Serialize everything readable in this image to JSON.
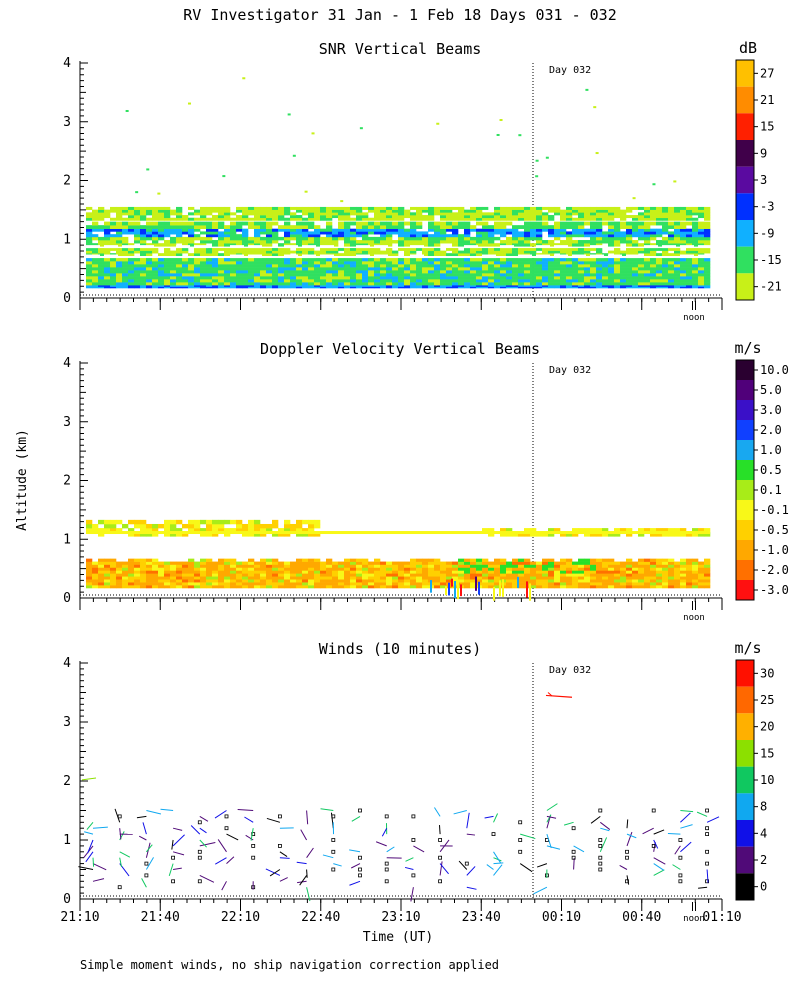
{
  "figure_title": "RV Investigator  31 Jan -  1 Feb 18 Days 031 - 032",
  "ylabel": "Altitude (km)",
  "xlabel": "Time (UT)",
  "footnote": "Simple moment winds, no ship navigation correction applied",
  "day_marker": "Day 032",
  "noon_label": "noon",
  "x_ticks": [
    "21:10",
    "21:40",
    "22:10",
    "22:40",
    "23:10",
    "23:40",
    "00:10",
    "00:40",
    "01:10"
  ],
  "y_ticks": [
    "0",
    "1",
    "2",
    "3",
    "4"
  ],
  "chart_data": [
    {
      "type": "heatmap",
      "title": "SNR Vertical Beams",
      "units": "dB",
      "ylim": [
        0,
        4
      ],
      "xlim": [
        "21:10",
        "01:10"
      ],
      "colorbar": {
        "labels": [
          "27",
          "21",
          "15",
          "9",
          "3",
          "-3",
          "-9",
          "-15",
          "-21"
        ],
        "colors": [
          "#ffc000",
          "#ff8c00",
          "#ff2000",
          "#40004a",
          "#5a0aa0",
          "#0030ff",
          "#10b0ff",
          "#30e060",
          "#c8f018"
        ]
      },
      "layers": [
        {
          "range_km": [
            0.15,
            0.7
          ],
          "snr_db": -12
        },
        {
          "range_km": [
            0.85,
            1.05
          ],
          "snr_db": -15
        },
        {
          "range_km": [
            1.05,
            1.2
          ],
          "snr_db": -6
        },
        {
          "range_km": [
            1.2,
            1.55
          ],
          "snr_db": -18
        }
      ]
    },
    {
      "type": "heatmap",
      "title": "Doppler Velocity Vertical Beams",
      "units": "m/s",
      "ylim": [
        0,
        4
      ],
      "xlim": [
        "21:10",
        "01:10"
      ],
      "colorbar": {
        "labels": [
          "10.0",
          "5.0",
          "3.0",
          "2.0",
          "1.0",
          "0.5",
          "0.1",
          "-0.1",
          "-0.5",
          "-1.0",
          "-2.0",
          "-3.0"
        ],
        "colors": [
          "#2a0030",
          "#50007a",
          "#3a10c8",
          "#1040ff",
          "#18a8f0",
          "#28e028",
          "#a8ec18",
          "#f8f818",
          "#ffd000",
          "#ffa800",
          "#ff7000",
          "#ff1010"
        ]
      },
      "layers": [
        {
          "range_km": [
            0.15,
            0.65
          ],
          "velocity_ms": -0.8
        },
        {
          "range_km": [
            1.0,
            1.35
          ],
          "velocity_ms": -0.3
        }
      ]
    },
    {
      "type": "scatter",
      "title": "Winds (10 minutes)",
      "units": "m/s",
      "ylim": [
        0,
        4
      ],
      "xlim": [
        "21:10",
        "01:10"
      ],
      "colorbar": {
        "labels": [
          "30",
          "25",
          "20",
          "15",
          "10",
          "8",
          "4",
          "2",
          "0"
        ],
        "colors": [
          "#ff1000",
          "#ff6800",
          "#ffb000",
          "#8ce000",
          "#10c860",
          "#10a8f0",
          "#1010e8",
          "#500a78",
          "#000000"
        ]
      },
      "range_km": [
        0.15,
        1.55
      ]
    }
  ]
}
